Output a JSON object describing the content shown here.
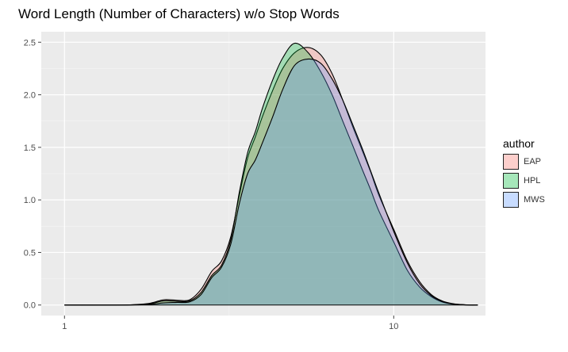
{
  "title": "Word Length (Number of Characters) w/o Stop Words",
  "legend": {
    "title": "author",
    "items": [
      {
        "label": "EAP",
        "color": "#F8766D"
      },
      {
        "label": "HPL",
        "color": "#00BA38"
      },
      {
        "label": "MWS",
        "color": "#619CFF"
      }
    ]
  },
  "chart_data": {
    "type": "area",
    "title": "Word Length (Number of Characters) w/o Stop Words",
    "xlabel": "",
    "ylabel": "",
    "x_scale": "log10",
    "xlim": [
      0.85,
      19
    ],
    "ylim": [
      -0.1,
      2.6
    ],
    "x_ticks": [
      1,
      10
    ],
    "x_tick_labels": [
      "1",
      "10"
    ],
    "y_ticks": [
      0.0,
      0.5,
      1.0,
      1.5,
      2.0,
      2.5
    ],
    "y_tick_labels": [
      "0.0",
      "0.5",
      "1.0",
      "1.5",
      "2.0",
      "2.5"
    ],
    "grid": true,
    "legend_position": "right",
    "fill_opacity": 0.3,
    "series": [
      {
        "name": "EAP",
        "color": "#F8766D",
        "x": [
          1,
          1.5,
          1.8,
          2.0,
          2.2,
          2.4,
          2.6,
          2.8,
          3.0,
          3.2,
          3.4,
          3.6,
          3.8,
          4.0,
          4.3,
          4.6,
          5.0,
          5.5,
          6.0,
          6.5,
          7.0,
          7.5,
          8.0,
          8.5,
          9.0,
          10,
          11,
          12,
          13,
          14,
          15,
          16,
          17,
          18
        ],
        "y": [
          0.0,
          0.0,
          0.015,
          0.05,
          0.045,
          0.05,
          0.15,
          0.32,
          0.42,
          0.65,
          1.05,
          1.4,
          1.6,
          1.8,
          2.05,
          2.25,
          2.4,
          2.45,
          2.38,
          2.2,
          1.95,
          1.7,
          1.48,
          1.27,
          1.05,
          0.72,
          0.42,
          0.22,
          0.1,
          0.04,
          0.015,
          0.005,
          0.0,
          0.0
        ]
      },
      {
        "name": "HPL",
        "color": "#00BA38",
        "x": [
          1,
          1.5,
          1.8,
          2.0,
          2.2,
          2.4,
          2.6,
          2.8,
          3.0,
          3.2,
          3.4,
          3.6,
          3.8,
          4.0,
          4.3,
          4.6,
          5.0,
          5.5,
          6.0,
          6.5,
          7.0,
          7.5,
          8.0,
          8.5,
          9.0,
          10,
          11,
          12,
          13,
          14,
          15,
          16,
          17,
          18
        ],
        "y": [
          0.0,
          0.0,
          0.01,
          0.04,
          0.035,
          0.04,
          0.12,
          0.28,
          0.38,
          0.62,
          1.08,
          1.45,
          1.65,
          1.88,
          2.15,
          2.35,
          2.49,
          2.4,
          2.22,
          2.0,
          1.75,
          1.52,
          1.3,
          1.1,
          0.9,
          0.6,
          0.33,
          0.17,
          0.08,
          0.03,
          0.01,
          0.003,
          0.0,
          0.0
        ]
      },
      {
        "name": "MWS",
        "color": "#619CFF",
        "x": [
          1,
          1.5,
          1.8,
          2.0,
          2.2,
          2.4,
          2.6,
          2.8,
          3.0,
          3.2,
          3.4,
          3.6,
          3.8,
          4.0,
          4.3,
          4.6,
          5.0,
          5.5,
          6.0,
          6.5,
          7.0,
          7.5,
          8.0,
          8.5,
          9.0,
          10,
          11,
          12,
          13,
          14,
          15,
          16,
          17,
          18
        ],
        "y": [
          0.0,
          0.0,
          0.005,
          0.02,
          0.025,
          0.03,
          0.1,
          0.26,
          0.36,
          0.58,
          0.97,
          1.25,
          1.38,
          1.55,
          1.8,
          2.05,
          2.28,
          2.34,
          2.3,
          2.15,
          1.95,
          1.72,
          1.5,
          1.28,
          1.07,
          0.7,
          0.4,
          0.2,
          0.09,
          0.035,
          0.012,
          0.004,
          0.0,
          0.0
        ]
      }
    ]
  }
}
